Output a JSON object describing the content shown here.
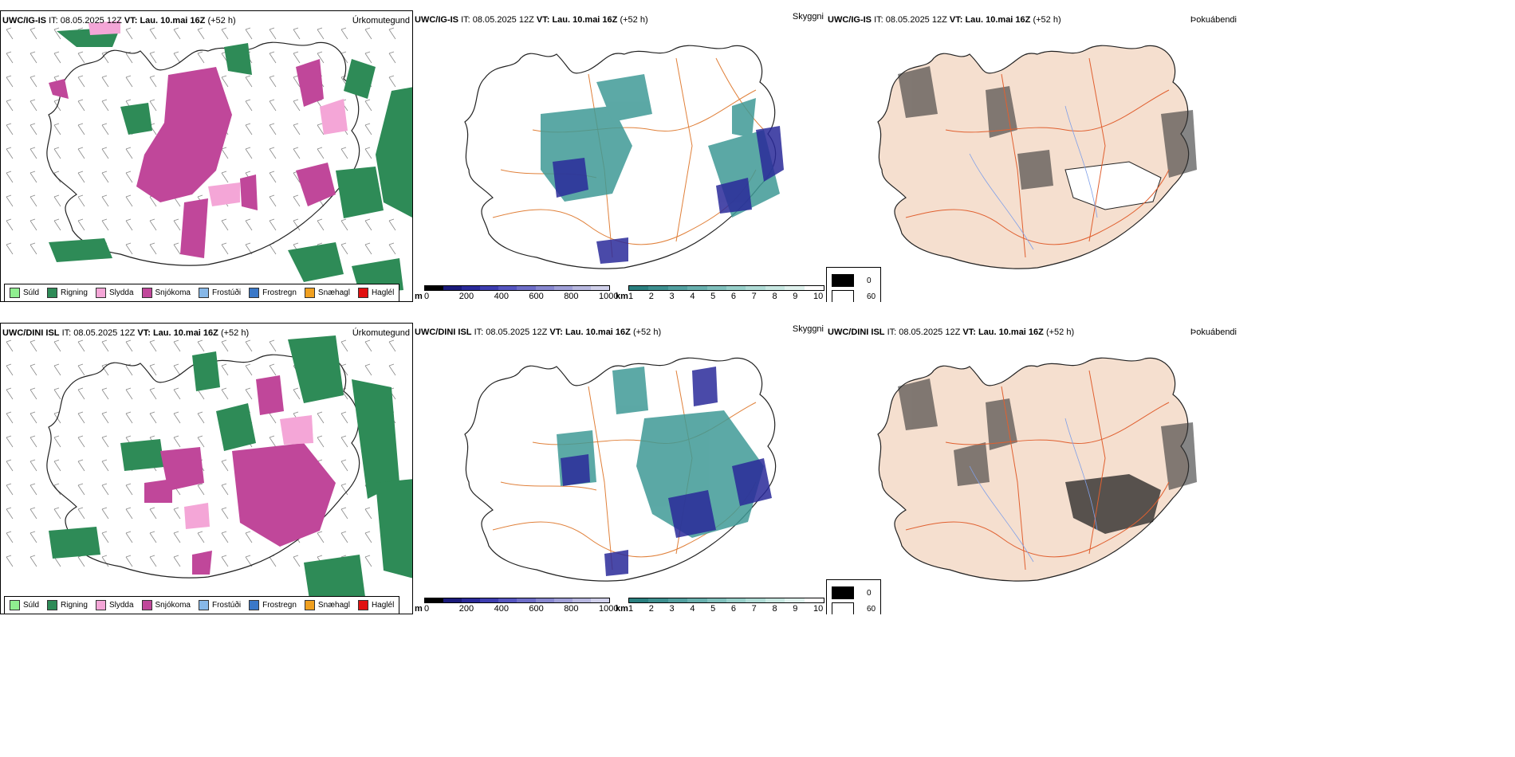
{
  "rows": [
    {
      "model": "UWC/IG-IS",
      "it_label": "IT:",
      "it_value": "08.05.2025 12Z",
      "vt_label": "VT:",
      "vt_value": "Lau. 10.mai 16Z",
      "lead": "(+52 h)"
    },
    {
      "model": "UWC/DINI ISL",
      "it_label": "IT:",
      "it_value": "08.05.2025 12Z",
      "vt_label": "VT:",
      "vt_value": "Lau. 10.mai 16Z",
      "lead": "(+52 h)"
    }
  ],
  "panels": {
    "precip_title": "Úrkomutegund",
    "cloud_title": "Skyggni",
    "fog_title": "Þokuábendi"
  },
  "precip_legend": [
    {
      "label": "Súld",
      "color": "#90ee90"
    },
    {
      "label": "Rigning",
      "color": "#2e8b57"
    },
    {
      "label": "Slydda",
      "color": "#f4a6d7"
    },
    {
      "label": "Snjókoma",
      "color": "#c0479a"
    },
    {
      "label": "Frostúði",
      "color": "#87b8e8"
    },
    {
      "label": "Frostregn",
      "color": "#3a78c8"
    },
    {
      "label": "Snæhagl",
      "color": "#f0a020"
    },
    {
      "label": "Haglél",
      "color": "#e01010"
    }
  ],
  "cbar_m": {
    "unit": "m",
    "ticks": [
      "0",
      "200",
      "400",
      "600",
      "800",
      "1000"
    ],
    "colors": [
      "#000000",
      "#1a1a7a",
      "#2a2a9a",
      "#3d3db0",
      "#5555c0",
      "#6e6ec8",
      "#8888d0",
      "#a0a0d8",
      "#b8b8e0",
      "#d0d0ea"
    ]
  },
  "cbar_km": {
    "unit": "km",
    "ticks": [
      "1",
      "2",
      "3",
      "4",
      "5",
      "6",
      "7",
      "8",
      "9",
      "10"
    ],
    "colors": [
      "#2a7f7f",
      "#3d8f8f",
      "#52a0a0",
      "#68b0ae",
      "#80c0bc",
      "#98d0ca",
      "#b0dcd6",
      "#c8e8e2",
      "#e0f2ee",
      "#ffffff"
    ]
  },
  "fog_legend": [
    {
      "label": "0",
      "color": "#000000"
    },
    {
      "label": "60",
      "color": "#ffffff"
    }
  ],
  "colors": {
    "land_fog": "#f5dfcf",
    "roads": "#e0803a",
    "rivers": "#7f9fe8",
    "rain": "#2e8b57",
    "snow": "#c0479a",
    "sleet": "#f4a6d7",
    "cloud_teal": "#3f9a96"
  }
}
